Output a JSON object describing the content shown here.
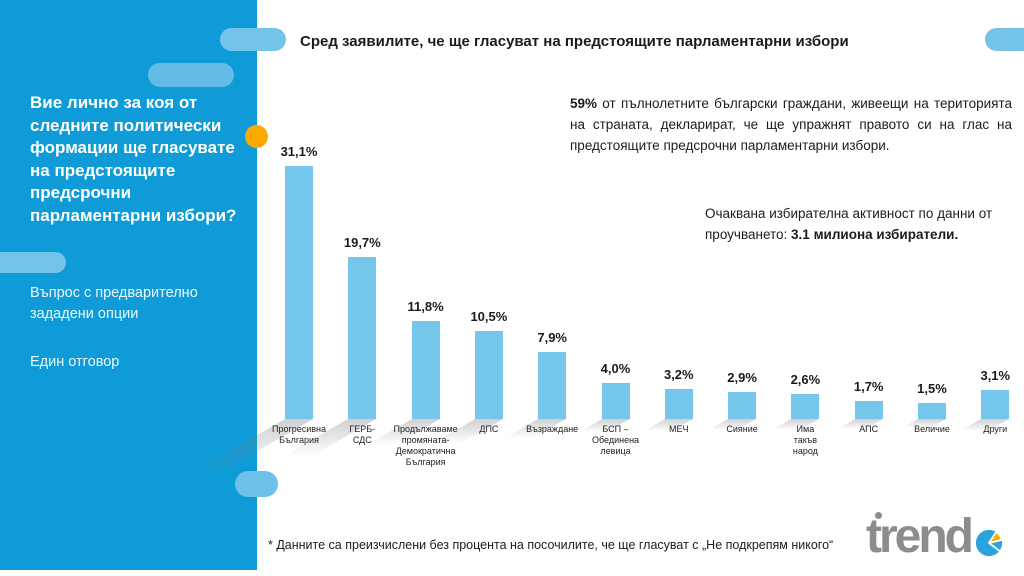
{
  "sidebar": {
    "question": "Вие лично за коя от следните политически формации ще гласувате на предстоящите предсрочни парламентарни избори?",
    "note1": "Въпрос с предварително зададени опции",
    "note2": "Един отговор"
  },
  "header": {
    "title": "Сред заявилите, че ще гласуват на предстоящите парламентарни избори"
  },
  "summary": {
    "stat_value": "59%",
    "stat_rest": "от пълнолетните български граждани, живеещи на територията на страната, декларират, че ще упражнят правото си на глас на предстоящите предсрочни парламентарни избори.",
    "turnout_prefix": "Очаквана избирателна активност по данни от проучването: ",
    "turnout_bold": "3.1 милиона избиратели."
  },
  "footnote": "* Данните са преизчислени без процента на посочилите, че ще гласуват с „Не подкрепям никого“",
  "logo": {
    "text": "trend"
  },
  "colors": {
    "sidebar_blue": "#0F9BD7",
    "pill_light_blue": "#74C4E9",
    "bar_blue": "#74C7EA",
    "accent_orange": "#FBA800",
    "logo_gray": "#8C8C8E",
    "logo_pie_blue": "#2BA3DB",
    "logo_pie_orange": "#F9B000"
  },
  "chart_data": {
    "type": "bar",
    "unit": "%",
    "title": "",
    "xlabel": "",
    "ylabel": "",
    "ylim": [
      0,
      35
    ],
    "grid": false,
    "legend": false,
    "categories": [
      "Прогресивна\nБългария",
      "ГЕРБ-\nСДС",
      "Продължаваме\nпромяната-\nДемократична\nБългария",
      "ДПС",
      "Възраждане",
      "БСП –\nОбединена\nлевица",
      "МЕЧ",
      "Сияние",
      "Има\nтакъв\nнарод",
      "АПС",
      "Величие",
      "Други"
    ],
    "values": [
      31.1,
      19.7,
      11.8,
      10.5,
      7.9,
      4.0,
      3.2,
      2.9,
      2.6,
      1.7,
      1.5,
      3.1
    ],
    "value_labels": [
      "31,1%",
      "19,7%",
      "11,8%",
      "10,5%",
      "7,9%",
      "4,0%",
      "3,2%",
      "2,9%",
      "2,6%",
      "1,7%",
      "1,5%",
      "3,1%"
    ]
  }
}
